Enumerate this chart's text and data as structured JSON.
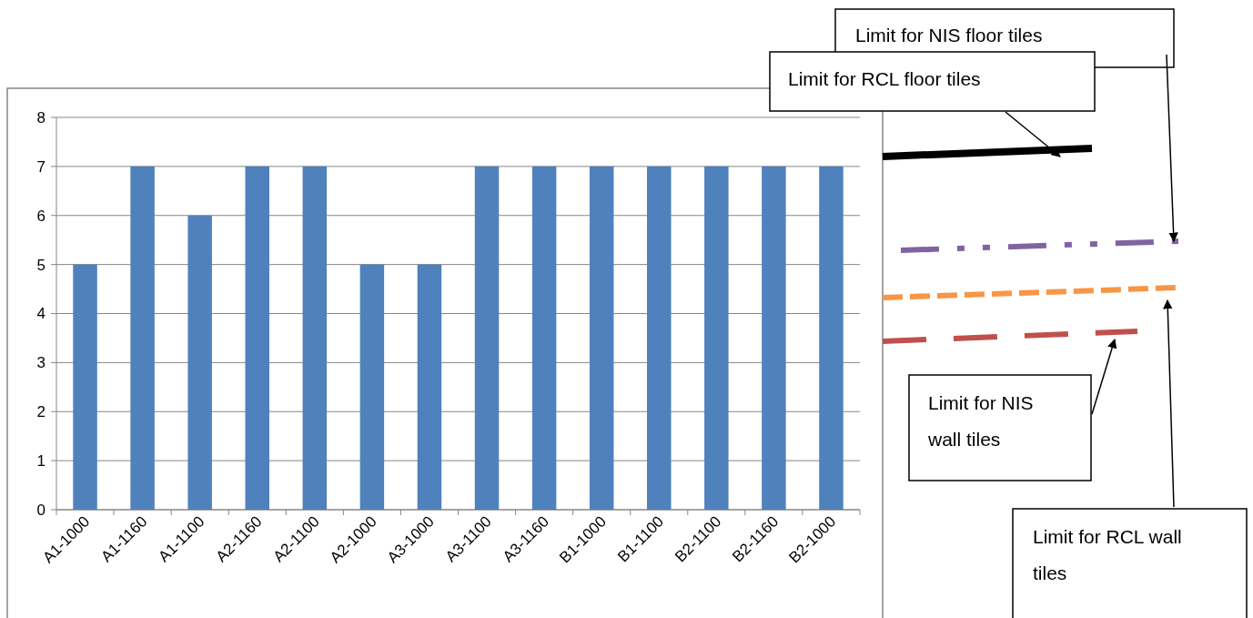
{
  "chart_data": {
    "type": "bar",
    "categories": [
      "A1-1000",
      "A1-1160",
      "A1-1100",
      "A2-1160",
      "A2-1100",
      "A2-1000",
      "A3-1000",
      "A3-1100",
      "A3-1160",
      "B1-1000",
      "B1-1100",
      "B2-1100",
      "B2-1160",
      "B2-1000"
    ],
    "values": [
      5,
      7,
      6,
      7,
      7,
      5,
      5,
      7,
      7,
      7,
      7,
      7,
      7,
      7
    ],
    "color": "#4f81bd",
    "ylim": [
      0,
      8
    ],
    "yticks": [
      0,
      1,
      2,
      3,
      4,
      5,
      6,
      7,
      8
    ],
    "grid": "y",
    "annotations": [
      "Limit for NIS floor tiles",
      "Limit for RCL floor tiles",
      "Limit for NIS wall tiles",
      "Limit for RCL wall tiles"
    ]
  }
}
